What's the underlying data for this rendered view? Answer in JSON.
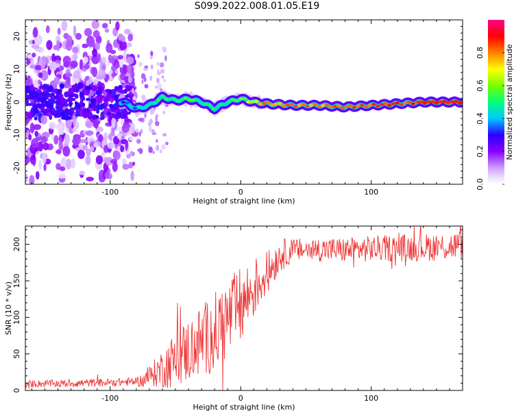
{
  "title": "S099.2022.008.01.05.E19",
  "colorbar_label": "Normalized spectral amplitude",
  "chart_data": [
    {
      "type": "heatmap",
      "title": "",
      "xlabel": "Height of straight line (km)",
      "ylabel": "Frequency (Hz)",
      "xlim": [
        -165,
        170
      ],
      "ylim": [
        -25,
        25
      ],
      "xticks": [
        -100,
        0,
        100
      ],
      "yticks": [
        -20,
        -10,
        0,
        10,
        20
      ],
      "colorbar": {
        "label": "Normalized spectral amplitude",
        "range": [
          0,
          1
        ],
        "ticks": [
          0,
          0.2,
          0.4,
          0.6,
          0.8
        ],
        "tick_labels": [
          "0.0",
          "0.2",
          "0.4",
          "0.6",
          "0.8"
        ],
        "colors": [
          "#ffffff",
          "#8a00ff",
          "#0000ff",
          "#00e5ff",
          "#00ff00",
          "#ffff00",
          "#ff8000",
          "#ff0000",
          "#ff0088"
        ]
      },
      "ridge": {
        "x": [
          -90,
          -80,
          -70,
          -60,
          -50,
          -40,
          -30,
          -20,
          -10,
          0,
          10,
          20,
          40,
          60,
          80,
          100,
          120,
          140,
          160,
          170
        ],
        "y": [
          0,
          -2,
          -1,
          1.5,
          0.5,
          1,
          0,
          -2,
          0,
          1,
          0,
          -0.5,
          -1,
          -1,
          -1.5,
          -1,
          -0.5,
          0,
          0,
          0
        ],
        "amp": [
          0.3,
          0.4,
          0.45,
          0.5,
          0.45,
          0.55,
          0.5,
          0.45,
          0.5,
          0.6,
          0.7,
          0.8,
          0.8,
          0.78,
          0.82,
          0.85,
          0.85,
          0.88,
          0.9,
          0.9
        ]
      },
      "noise_region": {
        "x_range": [
          -165,
          -85
        ],
        "freq_spread_hz": 24
      }
    },
    {
      "type": "line",
      "title": "",
      "xlabel": "Height of straight line (km)",
      "ylabel": "SNR (10 * v/v)",
      "xlim": [
        -165,
        170
      ],
      "ylim": [
        0,
        225
      ],
      "xticks": [
        -100,
        0,
        100
      ],
      "yticks": [
        0,
        50,
        100,
        150,
        200
      ],
      "series": [
        {
          "color": "#ee3333",
          "trend": {
            "x": [
              -165,
              -120,
              -80,
              -75,
              -60,
              -40,
              -20,
              0,
              10,
              20,
              30,
              40,
              60,
              80,
              100,
              120,
              140,
              160,
              170
            ],
            "y": [
              9,
              10,
              12,
              14,
              30,
              55,
              80,
              115,
              140,
              160,
              185,
              192,
              193,
              192,
              194,
              195,
              196,
              197,
              200
            ]
          },
          "noise_amplitude": {
            "x": [
              -165,
              -80,
              -70,
              -50,
              -20,
              0,
              20,
              40,
              100,
              170
            ],
            "y": [
              5,
              6,
              14,
              40,
              55,
              55,
              30,
              16,
              18,
              20
            ]
          }
        }
      ]
    }
  ]
}
